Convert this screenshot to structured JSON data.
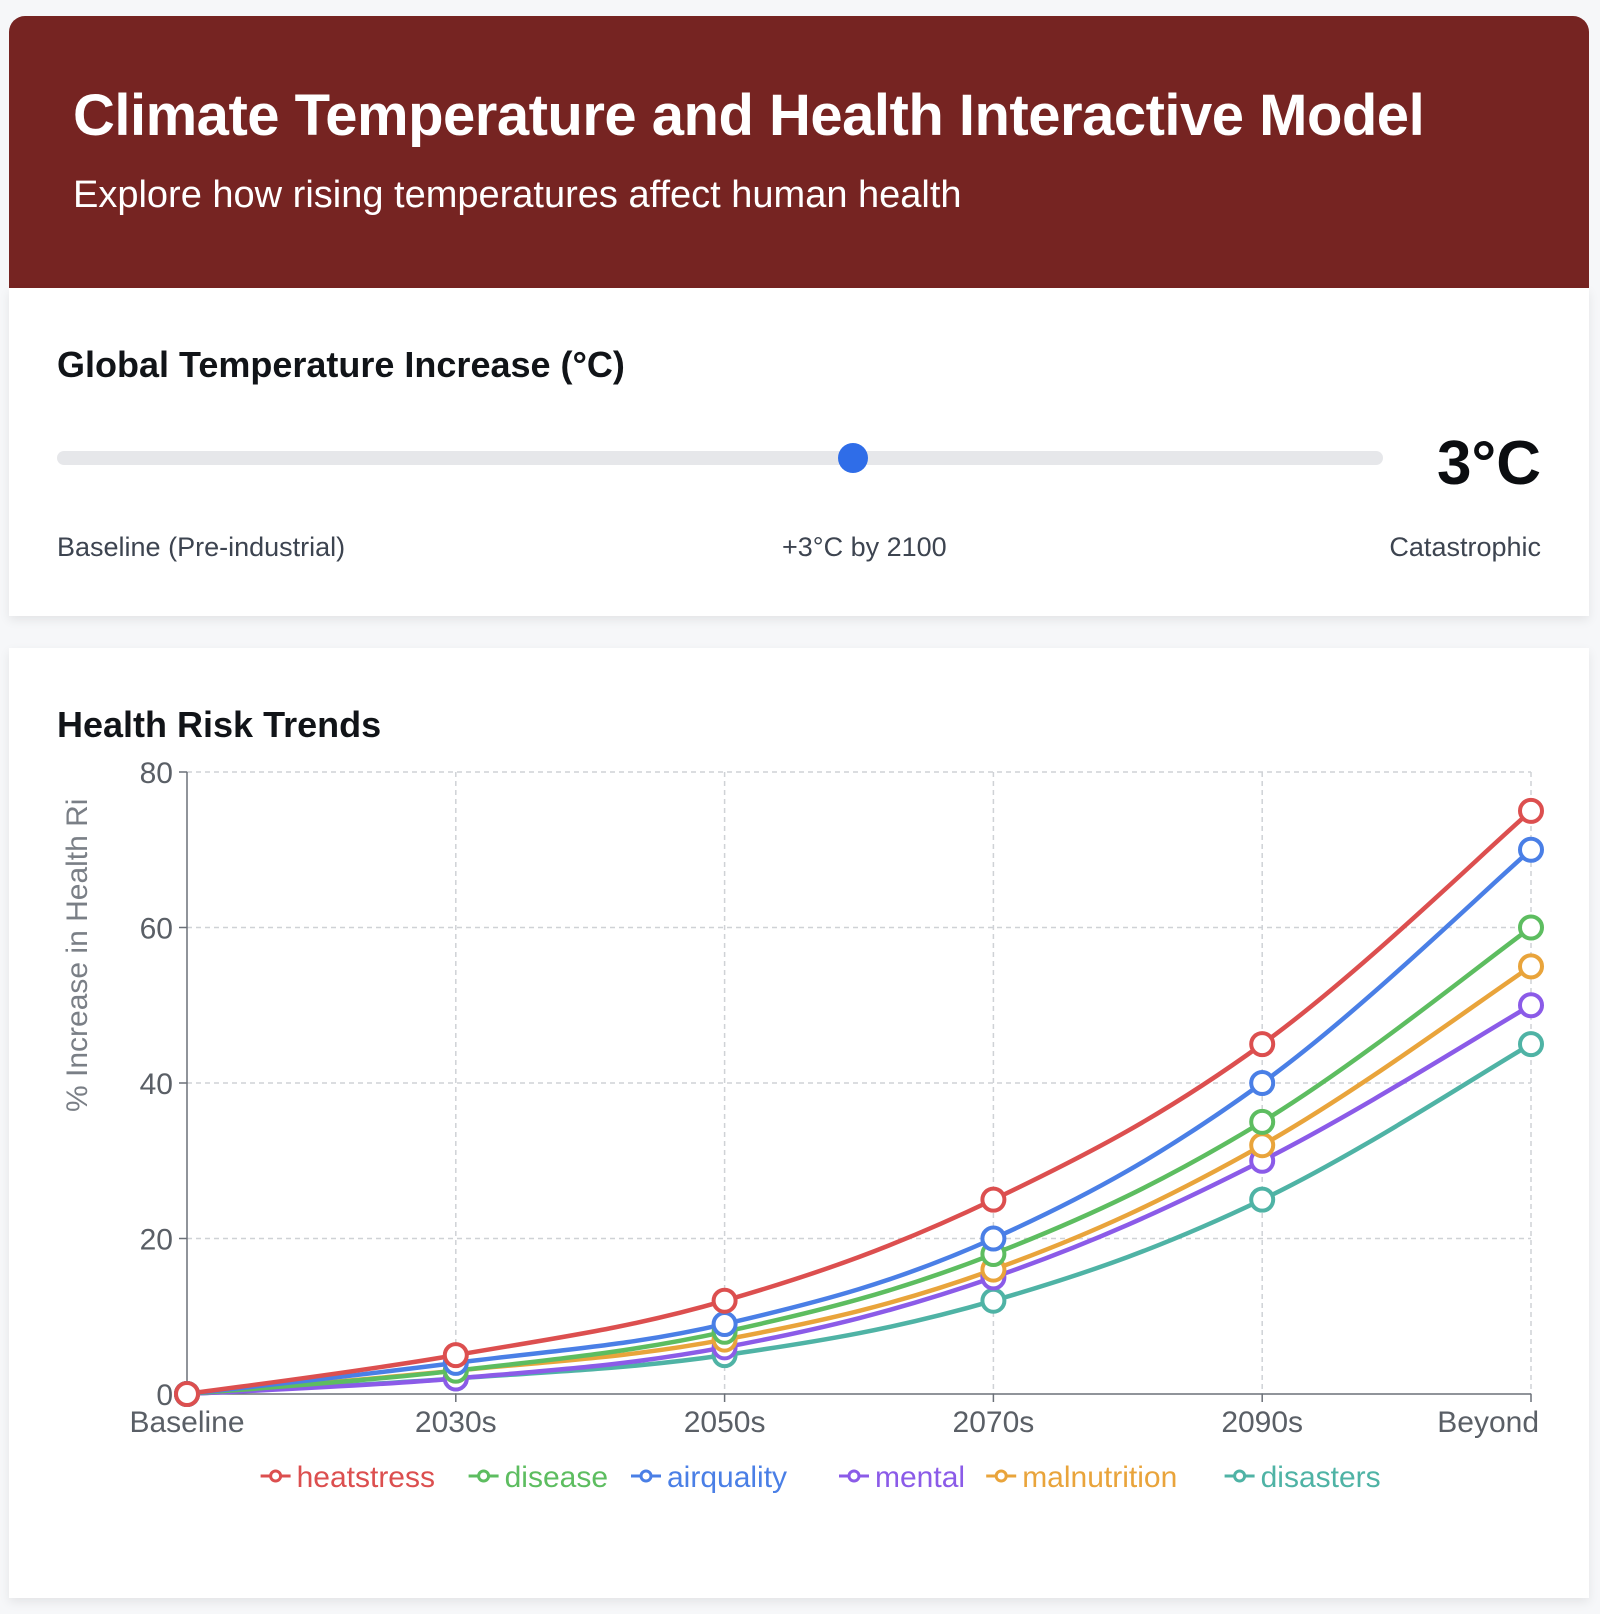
{
  "header": {
    "title": "Climate Temperature and Health Interactive Model",
    "subtitle": "Explore how rising temperatures affect human health"
  },
  "temperature_control": {
    "title": "Global Temperature Increase (°C)",
    "value_display": "3°C",
    "value": 3,
    "fill_fraction": 0.6,
    "label_left": "Baseline (Pre-industrial)",
    "label_center": "+3°C by 2100",
    "label_right": "Catastrophic",
    "accent_color": "#2f6de8"
  },
  "chart_section": {
    "title": "Health Risk Trends"
  },
  "chart_data": {
    "type": "line",
    "ylabel": "% Increase in Health Ri",
    "ylim": [
      0,
      80
    ],
    "yticks": [
      "0",
      "20",
      "40",
      "60",
      "80"
    ],
    "categories": [
      "Baseline",
      "2030s",
      "2050s",
      "2070s",
      "2090s",
      "Beyond"
    ],
    "grid": true,
    "legend_position": "bottom",
    "series": [
      {
        "name": "heatstress",
        "color": "#dc4f4f",
        "values": [
          0,
          5,
          12,
          25,
          45,
          75
        ]
      },
      {
        "name": "disease",
        "color": "#5dbd60",
        "values": [
          0,
          3,
          8,
          18,
          35,
          60
        ]
      },
      {
        "name": "airquality",
        "color": "#4a7fe6",
        "values": [
          0,
          4,
          9,
          20,
          40,
          70
        ]
      },
      {
        "name": "mental",
        "color": "#8b5be8",
        "values": [
          0,
          2,
          6,
          15,
          30,
          50
        ]
      },
      {
        "name": "malnutrition",
        "color": "#e9a43b",
        "values": [
          0,
          3,
          7,
          16,
          32,
          55
        ]
      },
      {
        "name": "disasters",
        "color": "#4fb3a5",
        "values": [
          0,
          2,
          5,
          12,
          25,
          45
        ]
      }
    ]
  }
}
